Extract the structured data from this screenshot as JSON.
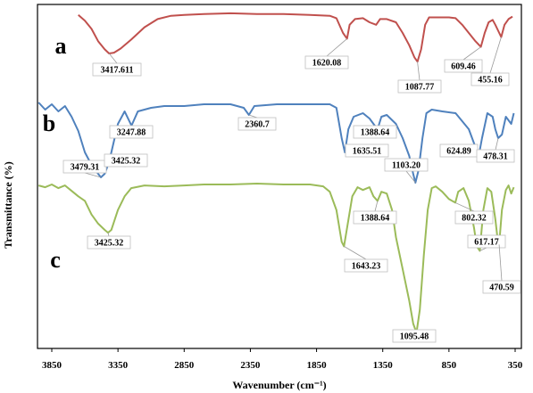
{
  "chart_data": {
    "type": "line",
    "xlabel": "Wavenumber (cm⁻¹)",
    "ylabel": "Transmittance (%)",
    "xlim": [
      4000,
      350
    ],
    "x_reversed": true,
    "xticks": [
      3850,
      3350,
      2850,
      2350,
      1850,
      1350,
      850,
      350
    ],
    "xtick_labels": [
      "3850",
      "3350",
      "2850",
      "2350",
      "1850",
      "1350",
      "850",
      "350"
    ],
    "series": [
      {
        "name": "a",
        "color": "#c0504d",
        "points": [
          [
            3650,
            0.3
          ],
          [
            3600,
            1.0
          ],
          [
            3550,
            2.0
          ],
          [
            3500,
            3.5
          ],
          [
            3450,
            4.5
          ],
          [
            3417,
            5.0
          ],
          [
            3380,
            4.9
          ],
          [
            3330,
            4.4
          ],
          [
            3250,
            3.3
          ],
          [
            3150,
            1.8
          ],
          [
            3050,
            0.8
          ],
          [
            2950,
            0.4
          ],
          [
            2850,
            0.3
          ],
          [
            2700,
            0.2
          ],
          [
            2500,
            0.1
          ],
          [
            2300,
            0.2
          ],
          [
            2100,
            0.2
          ],
          [
            1900,
            0.3
          ],
          [
            1750,
            0.4
          ],
          [
            1700,
            0.7
          ],
          [
            1650,
            2.5
          ],
          [
            1620,
            3.2
          ],
          [
            1600,
            1.5
          ],
          [
            1560,
            0.8
          ],
          [
            1500,
            0.7
          ],
          [
            1450,
            1.2
          ],
          [
            1400,
            1.5
          ],
          [
            1370,
            0.8
          ],
          [
            1320,
            0.8
          ],
          [
            1250,
            1.2
          ],
          [
            1200,
            2.5
          ],
          [
            1150,
            4.0
          ],
          [
            1110,
            5.5
          ],
          [
            1088,
            6.0
          ],
          [
            1060,
            4.5
          ],
          [
            1030,
            1.5
          ],
          [
            1000,
            0.6
          ],
          [
            950,
            0.6
          ],
          [
            850,
            0.6
          ],
          [
            800,
            0.7
          ],
          [
            750,
            1.5
          ],
          [
            700,
            2.5
          ],
          [
            650,
            3.5
          ],
          [
            609,
            4.2
          ],
          [
            580,
            2.5
          ],
          [
            550,
            1.2
          ],
          [
            520,
            0.9
          ],
          [
            500,
            1.5
          ],
          [
            470,
            2.5
          ],
          [
            455,
            3.0
          ],
          [
            430,
            1.5
          ],
          [
            400,
            0.8
          ],
          [
            370,
            0.5
          ]
        ]
      },
      {
        "name": "b",
        "color": "#4f81bd",
        "points": [
          [
            3950,
            0.0
          ],
          [
            3900,
            0.4
          ],
          [
            3850,
            0.1
          ],
          [
            3800,
            0.5
          ],
          [
            3750,
            0.2
          ],
          [
            3700,
            0.8
          ],
          [
            3650,
            1.6
          ],
          [
            3600,
            2.8
          ],
          [
            3550,
            3.5
          ],
          [
            3500,
            4.0
          ],
          [
            3479,
            4.2
          ],
          [
            3450,
            4.0
          ],
          [
            3425,
            3.5
          ],
          [
            3400,
            2.8
          ],
          [
            3350,
            1.2
          ],
          [
            3300,
            0.5
          ],
          [
            3248,
            1.3
          ],
          [
            3200,
            0.5
          ],
          [
            3100,
            0.3
          ],
          [
            3000,
            0.2
          ],
          [
            2850,
            0.2
          ],
          [
            2700,
            0.1
          ],
          [
            2500,
            0.1
          ],
          [
            2400,
            0.3
          ],
          [
            2361,
            0.7
          ],
          [
            2320,
            0.2
          ],
          [
            2150,
            0.1
          ],
          [
            1950,
            0.1
          ],
          [
            1750,
            0.1
          ],
          [
            1700,
            0.3
          ],
          [
            1660,
            2.0
          ],
          [
            1636,
            2.8
          ],
          [
            1610,
            1.5
          ],
          [
            1570,
            0.8
          ],
          [
            1500,
            0.6
          ],
          [
            1450,
            0.9
          ],
          [
            1410,
            1.3
          ],
          [
            1389,
            1.5
          ],
          [
            1360,
            0.8
          ],
          [
            1320,
            0.7
          ],
          [
            1250,
            1.2
          ],
          [
            1200,
            2.0
          ],
          [
            1150,
            3.0
          ],
          [
            1120,
            4.0
          ],
          [
            1103,
            4.5
          ],
          [
            1080,
            3.8
          ],
          [
            1050,
            2.0
          ],
          [
            1020,
            0.6
          ],
          [
            980,
            0.4
          ],
          [
            900,
            0.5
          ],
          [
            800,
            0.6
          ],
          [
            700,
            1.5
          ],
          [
            650,
            2.5
          ],
          [
            625,
            3.0
          ],
          [
            600,
            2.0
          ],
          [
            560,
            0.6
          ],
          [
            520,
            0.8
          ],
          [
            500,
            1.5
          ],
          [
            478,
            2.0
          ],
          [
            450,
            1.8
          ],
          [
            420,
            0.8
          ],
          [
            380,
            1.2
          ],
          [
            360,
            0.6
          ]
        ]
      },
      {
        "name": "c",
        "color": "#9bbb59",
        "points": [
          [
            3950,
            0.3
          ],
          [
            3900,
            0.5
          ],
          [
            3850,
            0.2
          ],
          [
            3800,
            0.6
          ],
          [
            3750,
            0.3
          ],
          [
            3700,
            0.9
          ],
          [
            3650,
            1.5
          ],
          [
            3600,
            2.0
          ],
          [
            3550,
            3.5
          ],
          [
            3500,
            4.5
          ],
          [
            3450,
            5.2
          ],
          [
            3425,
            5.5
          ],
          [
            3400,
            5.2
          ],
          [
            3350,
            3.0
          ],
          [
            3300,
            1.5
          ],
          [
            3250,
            0.6
          ],
          [
            3150,
            0.3
          ],
          [
            3000,
            0.4
          ],
          [
            2850,
            0.3
          ],
          [
            2700,
            0.2
          ],
          [
            2500,
            0.2
          ],
          [
            2300,
            0.1
          ],
          [
            2100,
            0.2
          ],
          [
            1900,
            0.2
          ],
          [
            1800,
            0.4
          ],
          [
            1750,
            1.0
          ],
          [
            1700,
            3.0
          ],
          [
            1660,
            6.5
          ],
          [
            1643,
            7.0
          ],
          [
            1620,
            5.0
          ],
          [
            1580,
            1.5
          ],
          [
            1540,
            0.5
          ],
          [
            1500,
            0.8
          ],
          [
            1450,
            0.5
          ],
          [
            1420,
            1.5
          ],
          [
            1389,
            2.0
          ],
          [
            1360,
            1.0
          ],
          [
            1320,
            1.2
          ],
          [
            1280,
            3.0
          ],
          [
            1250,
            6.0
          ],
          [
            1200,
            9.5
          ],
          [
            1150,
            13.0
          ],
          [
            1120,
            15.5
          ],
          [
            1095,
            16.5
          ],
          [
            1070,
            14.0
          ],
          [
            1040,
            8.0
          ],
          [
            1010,
            3.0
          ],
          [
            980,
            0.6
          ],
          [
            950,
            0.4
          ],
          [
            900,
            1.0
          ],
          [
            850,
            1.8
          ],
          [
            802,
            2.2
          ],
          [
            780,
            1.0
          ],
          [
            740,
            0.6
          ],
          [
            700,
            2.0
          ],
          [
            660,
            5.0
          ],
          [
            640,
            7.0
          ],
          [
            617,
            7.5
          ],
          [
            590,
            3.0
          ],
          [
            560,
            0.6
          ],
          [
            530,
            1.0
          ],
          [
            500,
            4.0
          ],
          [
            480,
            6.5
          ],
          [
            471,
            6.8
          ],
          [
            450,
            3.0
          ],
          [
            420,
            0.8
          ],
          [
            400,
            0.3
          ],
          [
            380,
            1.2
          ],
          [
            360,
            0.5
          ]
        ]
      }
    ],
    "panel_labels": [
      "a",
      "b",
      "c"
    ],
    "annotations": [
      {
        "series": "a",
        "text": "3417.611",
        "peak": 3417
      },
      {
        "series": "a",
        "text": "1620.08",
        "peak": 1620
      },
      {
        "series": "a",
        "text": "1087.77",
        "peak": 1088
      },
      {
        "series": "a",
        "text": "609.46",
        "peak": 609
      },
      {
        "series": "a",
        "text": "455.16",
        "peak": 455
      },
      {
        "series": "b",
        "text": "3479.31",
        "peak": 3479
      },
      {
        "series": "b",
        "text": "3425.32",
        "peak": 3425
      },
      {
        "series": "b",
        "text": "3247.88",
        "peak": 3248
      },
      {
        "series": "b",
        "text": "2360.7",
        "peak": 2361
      },
      {
        "series": "b",
        "text": "1635.51",
        "peak": 1636
      },
      {
        "series": "b",
        "text": "1388.64",
        "peak": 1389
      },
      {
        "series": "b",
        "text": "1103.20",
        "peak": 1103
      },
      {
        "series": "b",
        "text": "624.89",
        "peak": 625
      },
      {
        "series": "b",
        "text": "478.31",
        "peak": 478
      },
      {
        "series": "c",
        "text": "3425.32",
        "peak": 3425
      },
      {
        "series": "c",
        "text": "1643.23",
        "peak": 1643
      },
      {
        "series": "c",
        "text": "1388.64",
        "peak": 1389
      },
      {
        "series": "c",
        "text": "1095.48",
        "peak": 1095
      },
      {
        "series": "c",
        "text": "802.32",
        "peak": 802
      },
      {
        "series": "c",
        "text": "617.17",
        "peak": 617
      },
      {
        "series": "c",
        "text": "470.59",
        "peak": 471
      }
    ]
  }
}
